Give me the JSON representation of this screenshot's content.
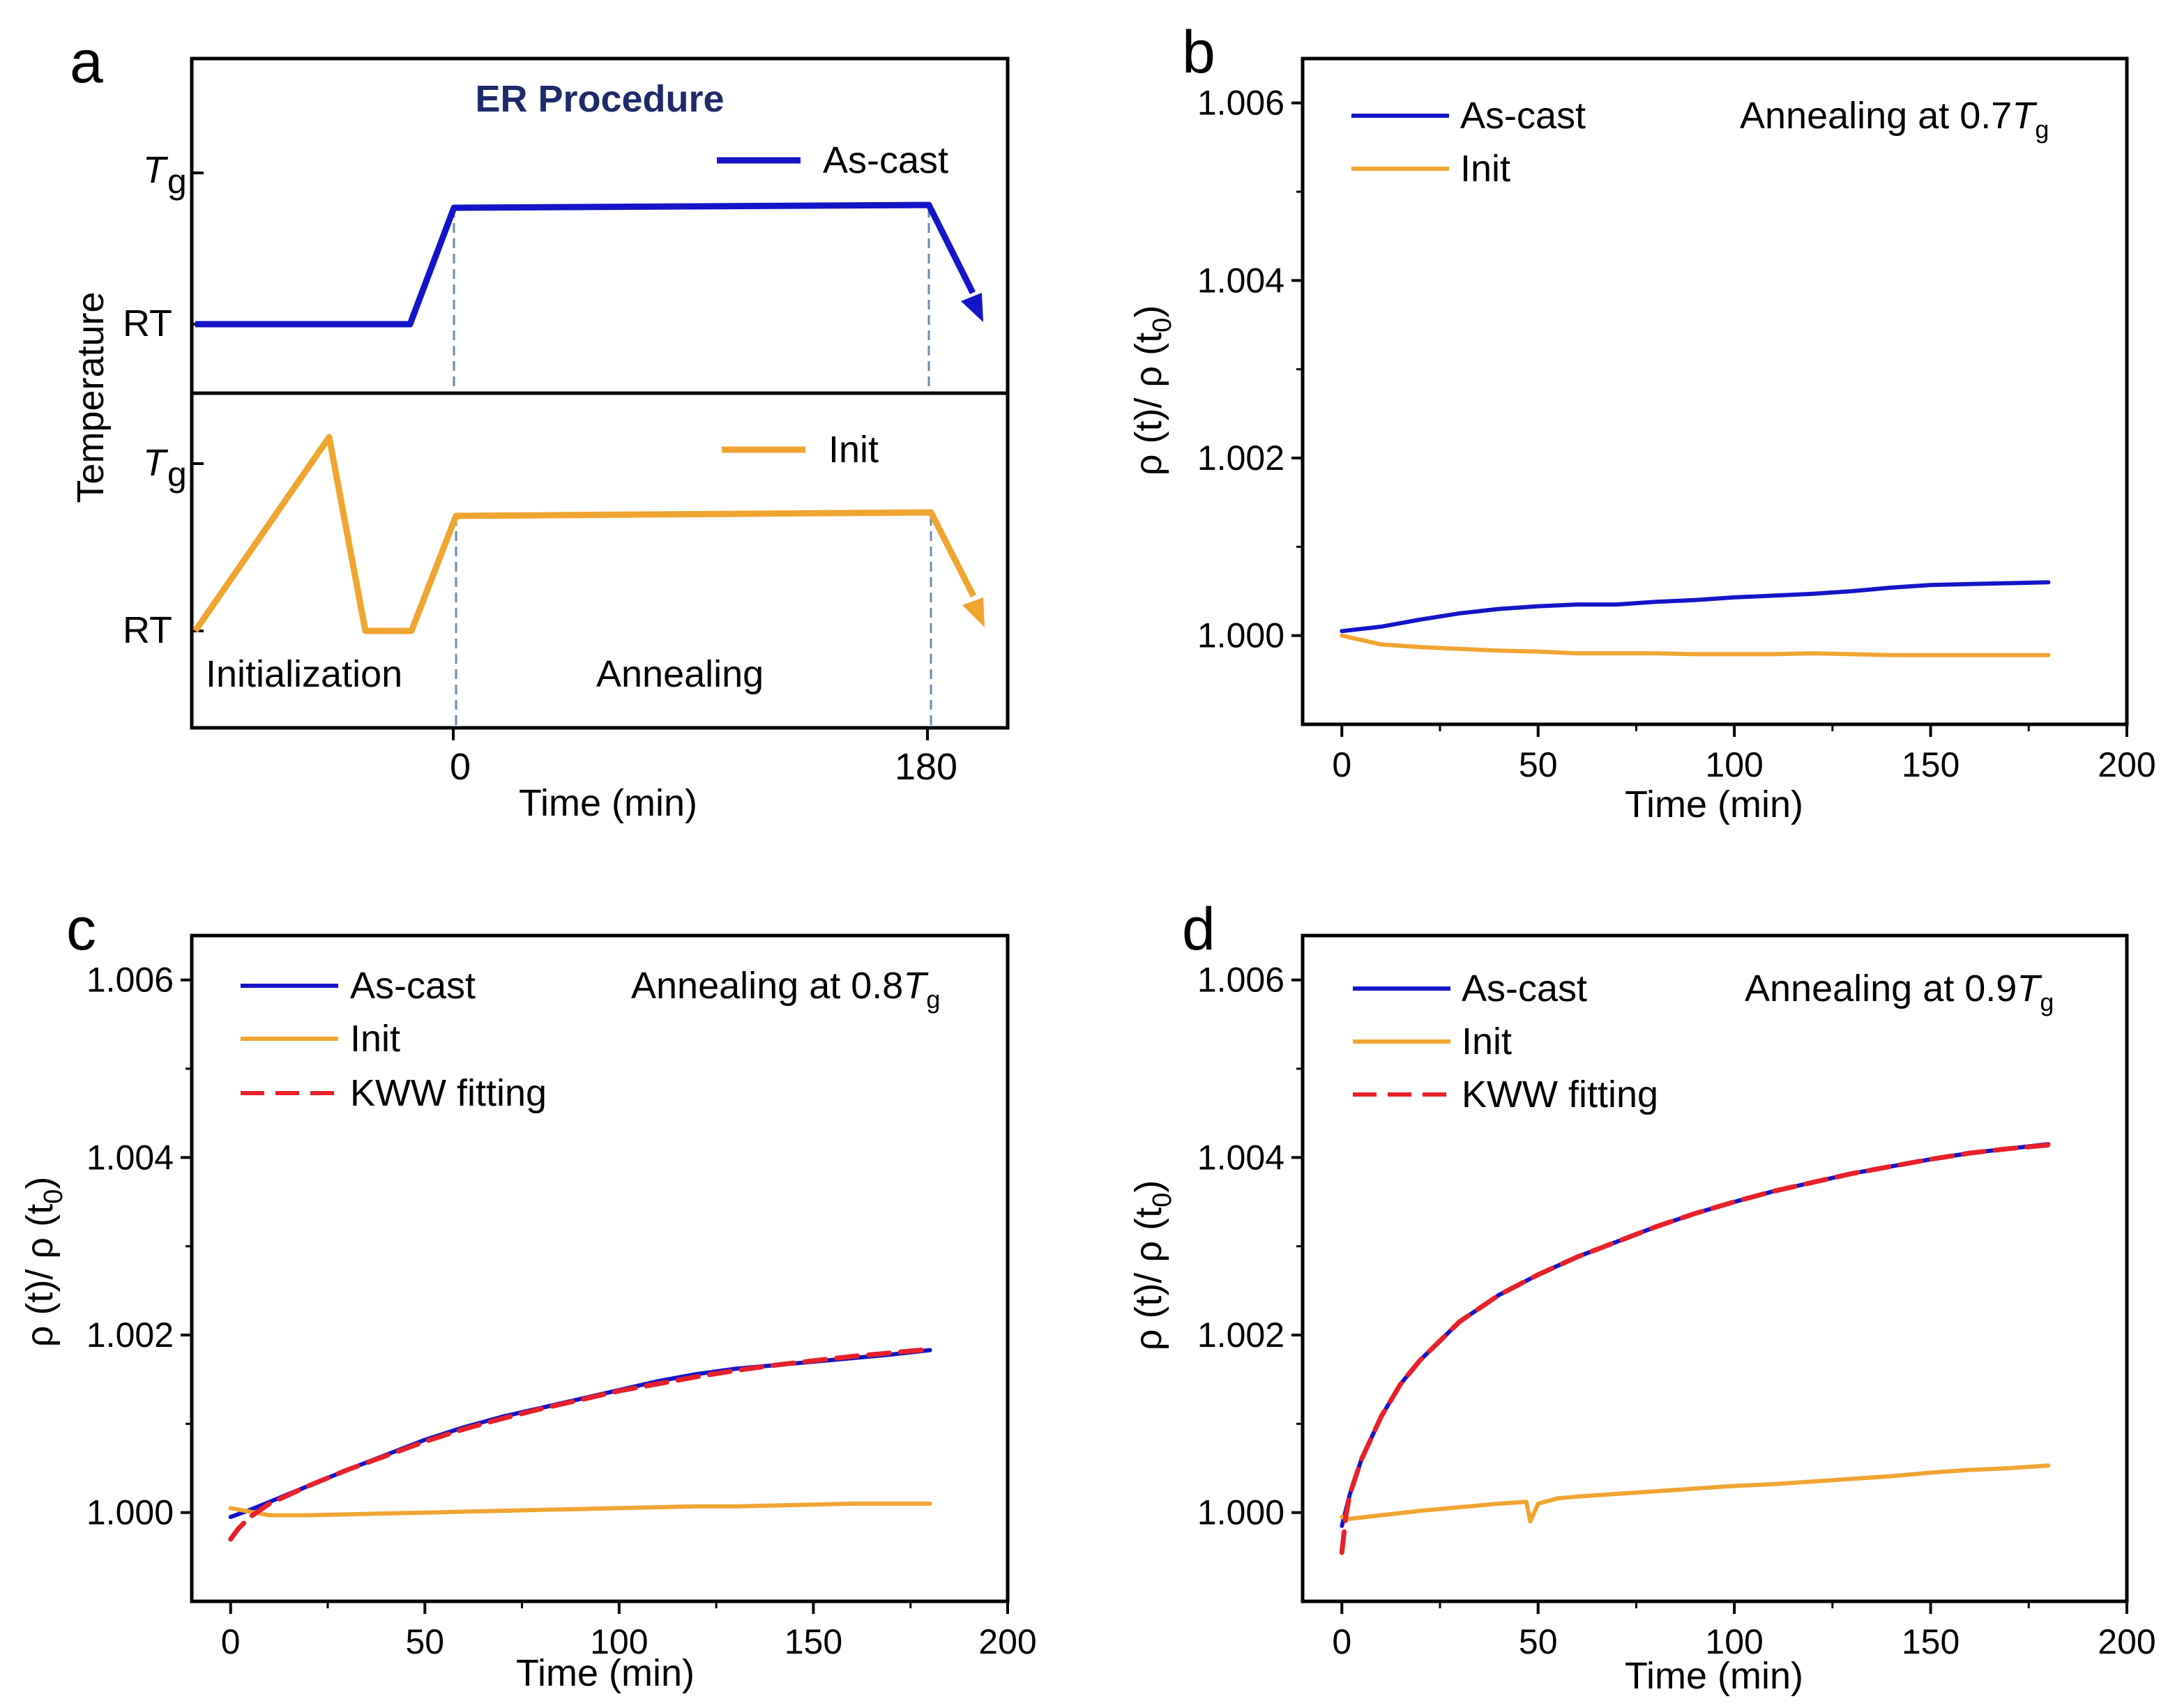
{
  "figure": {
    "panels": [
      {
        "letter": "a"
      },
      {
        "letter": "b"
      },
      {
        "letter": "c"
      },
      {
        "letter": "d"
      }
    ]
  },
  "chart_data": [
    {
      "panel": "a",
      "type": "line",
      "title": "ER Procedure",
      "xlabel": "Time (min)",
      "ylabel": "Temperature",
      "xticks": [
        "0",
        "180"
      ],
      "yticks_top": [
        "T",
        "RT"
      ],
      "yticks_bottom": [
        "T",
        "RT"
      ],
      "ytick_subscript": "g",
      "region_labels": [
        "Initialization",
        "Annealing"
      ],
      "legend": [
        {
          "label": "As-cast",
          "color": "#1414c8"
        },
        {
          "label": "Init",
          "color": "#f0a530"
        }
      ],
      "series": [
        {
          "name": "As-cast",
          "profile": [
            [
              "start",
              "RT"
            ],
            [
              "-15",
              "RT"
            ],
            [
              "0",
              "0.75 Tg"
            ],
            [
              "180",
              "0.75 Tg"
            ],
            [
              "end",
              "below 0.75 Tg"
            ]
          ]
        },
        {
          "name": "Init",
          "profile": [
            [
              "start",
              "RT"
            ],
            [
              "heat",
              "above Tg"
            ],
            [
              "cool",
              "RT"
            ],
            [
              "hold",
              "RT"
            ],
            [
              "0",
              "0.75 Tg"
            ],
            [
              "180",
              "0.75 Tg"
            ],
            [
              "end",
              "below 0.75 Tg"
            ]
          ]
        }
      ]
    },
    {
      "panel": "b",
      "type": "line",
      "annotation_prefix": "Annealing at 0.7",
      "annotation_T": "T",
      "annotation_sub": "g",
      "xlabel": "Time (min)",
      "ylabel_parts": [
        "ρ (t)/ ρ (t",
        "0",
        ")"
      ],
      "xlim": [
        -10,
        200
      ],
      "ylim": [
        0.999,
        1.0065
      ],
      "xticks": [
        0,
        50,
        100,
        150,
        200
      ],
      "yticks": [
        1.0,
        1.002,
        1.004,
        1.006
      ],
      "ytick_labels": [
        "1.000",
        "1.002",
        "1.004",
        "1.006"
      ],
      "legend": [
        {
          "label": "As-cast",
          "color": "#1414c8",
          "dash": false
        },
        {
          "label": "Init",
          "color": "#f0a530",
          "dash": false
        }
      ],
      "series": [
        {
          "name": "As-cast",
          "color": "#1414c8",
          "x": [
            0,
            10,
            20,
            30,
            40,
            50,
            60,
            70,
            80,
            90,
            100,
            110,
            120,
            130,
            140,
            150,
            160,
            170,
            180
          ],
          "y": [
            1.00005,
            1.0001,
            1.00018,
            1.00025,
            1.0003,
            1.00033,
            1.00035,
            1.00035,
            1.00038,
            1.0004,
            1.00043,
            1.00045,
            1.00047,
            1.0005,
            1.00054,
            1.00057,
            1.00058,
            1.00059,
            1.0006
          ]
        },
        {
          "name": "Init",
          "color": "#f0a530",
          "x": [
            0,
            10,
            20,
            30,
            40,
            50,
            60,
            70,
            80,
            90,
            100,
            110,
            120,
            130,
            140,
            150,
            160,
            170,
            180
          ],
          "y": [
            1.0,
            0.9999,
            0.99987,
            0.99985,
            0.99983,
            0.99982,
            0.9998,
            0.9998,
            0.9998,
            0.99979,
            0.99979,
            0.99979,
            0.9998,
            0.99979,
            0.99978,
            0.99978,
            0.99978,
            0.99978,
            0.99978
          ]
        }
      ]
    },
    {
      "panel": "c",
      "type": "line",
      "annotation_prefix": "Annealing at 0.8",
      "annotation_T": "T",
      "annotation_sub": "g",
      "xlabel": "Time (min)",
      "ylabel_parts": [
        "ρ (t)/ ρ (t",
        "0",
        ")"
      ],
      "xlim": [
        -10,
        200
      ],
      "ylim": [
        0.999,
        1.0065
      ],
      "xticks": [
        0,
        50,
        100,
        150,
        200
      ],
      "yticks": [
        1.0,
        1.002,
        1.004,
        1.006
      ],
      "ytick_labels": [
        "1.000",
        "1.002",
        "1.004",
        "1.006"
      ],
      "legend": [
        {
          "label": "As-cast",
          "color": "#1414c8",
          "dash": false
        },
        {
          "label": "Init",
          "color": "#f0a530",
          "dash": false
        },
        {
          "label": "KWW fitting",
          "color": "#e8202a",
          "dash": true
        }
      ],
      "series": [
        {
          "name": "As-cast",
          "color": "#1414c8",
          "x": [
            0,
            5,
            10,
            20,
            30,
            40,
            50,
            60,
            70,
            80,
            90,
            100,
            110,
            120,
            130,
            140,
            150,
            160,
            170,
            180
          ],
          "y": [
            0.99995,
            1.00003,
            1.00012,
            1.0003,
            1.00048,
            1.00065,
            1.00082,
            1.00096,
            1.00108,
            1.00118,
            1.00128,
            1.00138,
            1.00148,
            1.00156,
            1.00162,
            1.00166,
            1.0017,
            1.00174,
            1.00178,
            1.00183
          ]
        },
        {
          "name": "Init",
          "color": "#f0a530",
          "x": [
            0,
            10,
            20,
            30,
            40,
            50,
            60,
            70,
            80,
            90,
            100,
            110,
            120,
            130,
            140,
            150,
            160,
            170,
            180
          ],
          "y": [
            1.00005,
            0.99997,
            0.99997,
            0.99998,
            0.99999,
            1.0,
            1.00001,
            1.00002,
            1.00003,
            1.00004,
            1.00005,
            1.00006,
            1.00007,
            1.00007,
            1.00008,
            1.00009,
            1.0001,
            1.0001,
            1.0001
          ]
        },
        {
          "name": "KWW fitting",
          "color": "#e8202a",
          "dash": true,
          "x": [
            0,
            2,
            5,
            10,
            20,
            30,
            40,
            50,
            60,
            70,
            80,
            90,
            100,
            110,
            120,
            130,
            140,
            150,
            160,
            170,
            180
          ],
          "y": [
            0.9997,
            0.99982,
            0.99995,
            1.0001,
            1.0003,
            1.00048,
            1.00064,
            1.0008,
            1.00094,
            1.00106,
            1.00117,
            1.00127,
            1.00137,
            1.00145,
            1.00153,
            1.0016,
            1.00166,
            1.00171,
            1.00176,
            1.0018,
            1.00184
          ]
        }
      ]
    },
    {
      "panel": "d",
      "type": "line",
      "annotation_prefix": "Annealing at 0.9",
      "annotation_T": "T",
      "annotation_sub": "g",
      "xlabel": "Time (min)",
      "ylabel_parts": [
        "ρ (t)/ ρ (t",
        "0",
        ")"
      ],
      "xlim": [
        -10,
        200
      ],
      "ylim": [
        0.999,
        1.0065
      ],
      "xticks": [
        0,
        50,
        100,
        150,
        200
      ],
      "yticks": [
        1.0,
        1.002,
        1.004,
        1.006
      ],
      "ytick_labels": [
        "1.000",
        "1.002",
        "1.004",
        "1.006"
      ],
      "legend": [
        {
          "label": "As-cast",
          "color": "#1414c8",
          "dash": false
        },
        {
          "label": "Init",
          "color": "#f0a530",
          "dash": false
        },
        {
          "label": "KWW fitting",
          "color": "#e8202a",
          "dash": true
        }
      ],
      "series": [
        {
          "name": "As-cast",
          "color": "#1414c8",
          "x": [
            0,
            2,
            5,
            10,
            15,
            20,
            30,
            40,
            50,
            60,
            70,
            80,
            90,
            100,
            110,
            120,
            130,
            140,
            150,
            160,
            170,
            180
          ],
          "y": [
            0.99985,
            1.0002,
            1.0006,
            1.00108,
            1.00145,
            1.00172,
            1.00215,
            1.00245,
            1.00268,
            1.00288,
            1.00305,
            1.00322,
            1.00337,
            1.0035,
            1.00362,
            1.00372,
            1.00382,
            1.0039,
            1.00398,
            1.00405,
            1.0041,
            1.00415
          ]
        },
        {
          "name": "Init",
          "color": "#f0a530",
          "x": [
            0,
            2,
            10,
            20,
            30,
            40,
            47,
            48,
            50,
            55,
            60,
            70,
            80,
            90,
            100,
            110,
            120,
            130,
            140,
            150,
            160,
            170,
            180
          ],
          "y": [
            0.99995,
            0.99993,
            0.99997,
            1.00002,
            1.00006,
            1.0001,
            1.00012,
            0.9999,
            1.0001,
            1.00016,
            1.00018,
            1.00021,
            1.00024,
            1.00027,
            1.0003,
            1.00032,
            1.00035,
            1.00038,
            1.00041,
            1.00045,
            1.00048,
            1.0005,
            1.00053
          ]
        },
        {
          "name": "KWW fitting",
          "color": "#e8202a",
          "dash": true,
          "x": [
            0,
            1,
            2,
            5,
            10,
            15,
            20,
            30,
            40,
            50,
            60,
            70,
            80,
            90,
            100,
            110,
            120,
            130,
            140,
            150,
            160,
            170,
            180
          ],
          "y": [
            0.99955,
            0.99995,
            1.0002,
            1.0006,
            1.00108,
            1.00145,
            1.00172,
            1.00215,
            1.00245,
            1.00268,
            1.00288,
            1.00305,
            1.00322,
            1.00337,
            1.0035,
            1.00362,
            1.00372,
            1.00382,
            1.0039,
            1.00398,
            1.00405,
            1.0041,
            1.00414
          ]
        }
      ]
    }
  ]
}
